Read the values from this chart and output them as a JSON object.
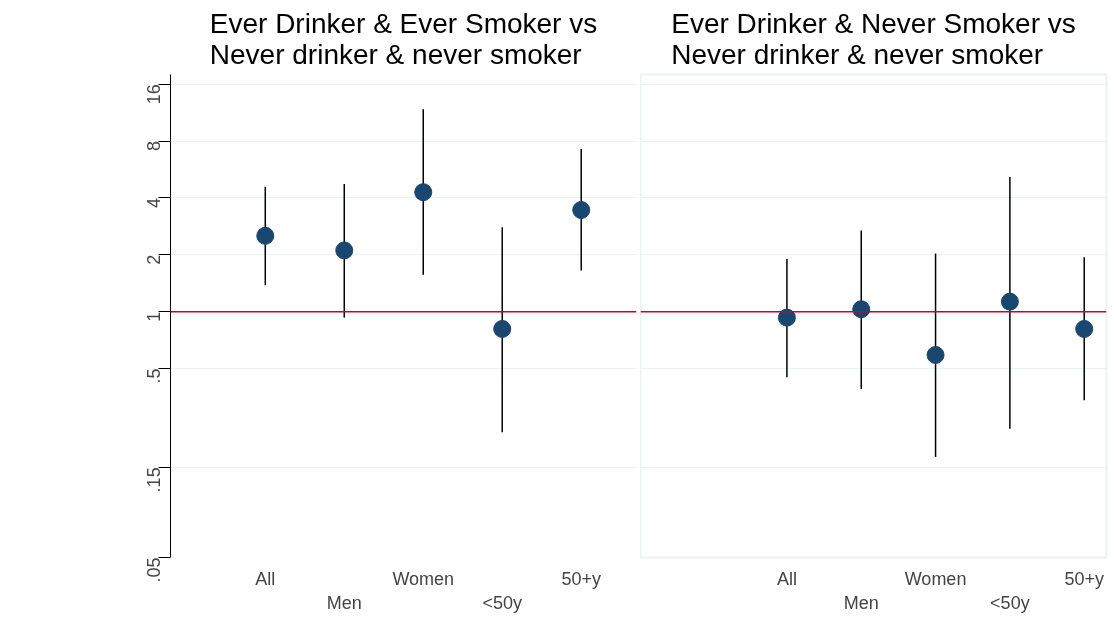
{
  "chart_data": [
    {
      "type": "scatter",
      "title": "Ever Drinker & Ever Smoker vs\nNever drinker & never smoker",
      "categories": [
        "All",
        "Men",
        "Women",
        "<50y",
        "50+y"
      ],
      "series": [
        {
          "color": "#1a476f",
          "values": [
            2.52,
            2.11,
            4.29,
            0.81,
            3.45
          ],
          "errors": [
            [
              1.38,
              4.59
            ],
            [
              0.93,
              4.74
            ],
            [
              1.57,
              11.8
            ],
            [
              0.23,
              2.8
            ],
            [
              1.65,
              7.25
            ]
          ]
        }
      ],
      "log": true,
      "ylim": [
        0.05,
        18
      ],
      "yticks": [
        {
          "value": 0.05,
          "label": ".05"
        },
        {
          "value": 0.15,
          "label": ".15"
        },
        {
          "value": 0.5,
          "label": ".5"
        },
        1,
        2,
        4,
        8,
        16
      ],
      "ref_lines": [
        {
          "axis": "y",
          "value": 1,
          "color": "#c10534"
        }
      ],
      "grid": "y",
      "marker": "circle"
    },
    {
      "type": "scatter",
      "title": "Ever Drinker & Never Smoker vs\nNever drinker & never smoker",
      "categories": [
        "All",
        "Men",
        "Women",
        "<50y",
        "50+y"
      ],
      "series": [
        {
          "color": "#1a476f",
          "values": [
            0.93,
            1.03,
            0.59,
            1.13,
            0.81
          ],
          "errors": [
            [
              0.45,
              1.9
            ],
            [
              0.39,
              2.69
            ],
            [
              0.17,
              2.03
            ],
            [
              0.24,
              5.16
            ],
            [
              0.34,
              1.94
            ]
          ]
        }
      ],
      "log": true,
      "ylim": [
        0.05,
        18
      ],
      "yticks": [
        0.05,
        0.15,
        0.5,
        1,
        2,
        4,
        8,
        16
      ],
      "ref_lines": [
        {
          "axis": "y",
          "value": 1,
          "color": "#c10534"
        }
      ],
      "grid": "y",
      "marker": "circle",
      "tick_labels": "x"
    }
  ]
}
